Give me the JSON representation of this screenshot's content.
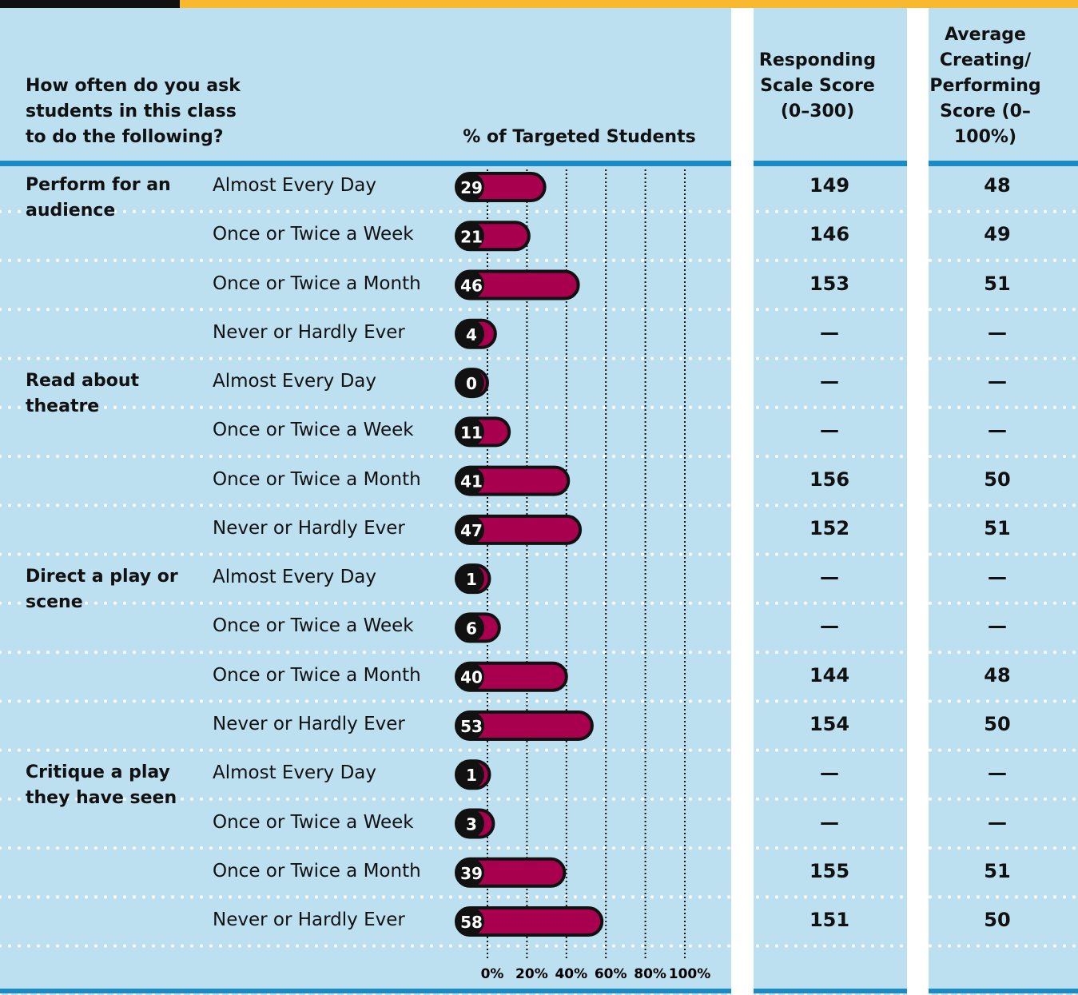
{
  "chart_data": {
    "type": "bar",
    "question": "How often do you ask students in this class to do the following?",
    "bar_header": "% of Targeted Students",
    "col1_header": "Responding Scale Score (0–300)",
    "col2_header": "Average Creating/ Performing Score (0–100%)",
    "xlim": [
      0,
      100
    ],
    "xticks": [
      {
        "value": 0,
        "label": "0%"
      },
      {
        "value": 20,
        "label": "20%"
      },
      {
        "value": 40,
        "label": "40%"
      },
      {
        "value": 60,
        "label": "60%"
      },
      {
        "value": 80,
        "label": "80%"
      },
      {
        "value": 100,
        "label": "100%"
      }
    ],
    "color": "#a8004f",
    "groups": [
      {
        "label": "Perform for an audience",
        "rows": [
          {
            "category": "Almost Every Day",
            "value": 29,
            "responding": "149",
            "average": "48"
          },
          {
            "category": "Once or Twice a Week",
            "value": 21,
            "responding": "146",
            "average": "49"
          },
          {
            "category": "Once or Twice a Month",
            "value": 46,
            "responding": "153",
            "average": "51"
          },
          {
            "category": "Never or Hardly Ever",
            "value": 4,
            "responding": "—",
            "average": "—"
          }
        ]
      },
      {
        "label": "Read about theatre",
        "rows": [
          {
            "category": "Almost Every Day",
            "value": 0,
            "responding": "—",
            "average": "—"
          },
          {
            "category": "Once or Twice a Week",
            "value": 11,
            "responding": "—",
            "average": "—"
          },
          {
            "category": "Once or Twice a Month",
            "value": 41,
            "responding": "156",
            "average": "50"
          },
          {
            "category": "Never or Hardly Ever",
            "value": 47,
            "responding": "152",
            "average": "51"
          }
        ]
      },
      {
        "label": "Direct a play or scene",
        "rows": [
          {
            "category": "Almost Every Day",
            "value": 1,
            "responding": "—",
            "average": "—"
          },
          {
            "category": "Once or Twice a Week",
            "value": 6,
            "responding": "—",
            "average": "—"
          },
          {
            "category": "Once or Twice a Month",
            "value": 40,
            "responding": "144",
            "average": "48"
          },
          {
            "category": "Never or Hardly Ever",
            "value": 53,
            "responding": "154",
            "average": "50"
          }
        ]
      },
      {
        "label": "Critique a play they have seen",
        "rows": [
          {
            "category": "Almost Every Day",
            "value": 1,
            "responding": "—",
            "average": "—"
          },
          {
            "category": "Once or Twice a Week",
            "value": 3,
            "responding": "—",
            "average": "—"
          },
          {
            "category": "Once or Twice a Month",
            "value": 39,
            "responding": "155",
            "average": "51"
          },
          {
            "category": "Never or Hardly Ever",
            "value": 58,
            "responding": "151",
            "average": "50"
          }
        ]
      }
    ]
  }
}
